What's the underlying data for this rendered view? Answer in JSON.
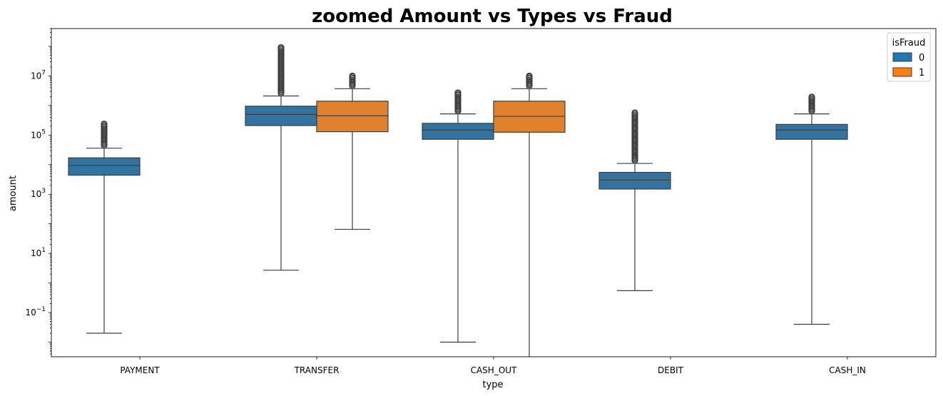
{
  "chart_data": {
    "type": "box",
    "title": "zoomed Amount vs Types vs Fraud",
    "xlabel": "type",
    "ylabel": "amount",
    "yscale": "log",
    "ylim": [
      0.0032,
      400000000
    ],
    "categories": [
      "PAYMENT",
      "TRANSFER",
      "CASH_OUT",
      "DEBIT",
      "CASH_IN"
    ],
    "ytick_labels": [
      {
        "value": 0.1,
        "base": "10",
        "exp": "−1"
      },
      {
        "value": 10,
        "base": "10",
        "exp": "1"
      },
      {
        "value": 1000,
        "base": "10",
        "exp": "3"
      },
      {
        "value": 100000,
        "base": "10",
        "exp": "5"
      },
      {
        "value": 10000000,
        "base": "10",
        "exp": "7"
      }
    ],
    "legend": {
      "title": "isFraud",
      "placement": "top-right",
      "entries": [
        {
          "label": "0",
          "color": "#1f77b4"
        },
        {
          "label": "1",
          "color": "#ff7f0e"
        }
      ]
    },
    "grid": false,
    "series": [
      {
        "name": "0",
        "color": "#3274a1",
        "boxes": [
          {
            "category": "PAYMENT",
            "whisker_low": 0.02,
            "q1": 4400,
            "median": 9500,
            "q3": 17000,
            "whisker_high": 36000,
            "outlier_max": 240000
          },
          {
            "category": "TRANSFER",
            "whisker_low": 2.7,
            "q1": 210000,
            "median": 500000,
            "q3": 950000,
            "whisker_high": 2100000,
            "outlier_max": 92000000
          },
          {
            "category": "CASH_OUT",
            "whisker_low": 0.01,
            "q1": 72000,
            "median": 148000,
            "q3": 250000,
            "whisker_high": 520000,
            "outlier_max": 2700000
          },
          {
            "category": "DEBIT",
            "whisker_low": 0.55,
            "q1": 1500,
            "median": 3000,
            "q3": 5500,
            "whisker_high": 11000,
            "outlier_max": 570000
          },
          {
            "category": "CASH_IN",
            "whisker_low": 0.04,
            "q1": 72000,
            "median": 148000,
            "q3": 230000,
            "whisker_high": 520000,
            "outlier_max": 1950000
          }
        ]
      },
      {
        "name": "1",
        "color": "#e1812c",
        "boxes": [
          {
            "category": "TRANSFER",
            "whisker_low": 65,
            "q1": 130000,
            "median": 450000,
            "q3": 1400000,
            "whisker_high": 3700000,
            "outlier_max": 10000000
          },
          {
            "category": "CASH_OUT",
            "whisker_low": 0.003,
            "q1": 125000,
            "median": 430000,
            "q3": 1400000,
            "whisker_high": 3700000,
            "outlier_max": 10000000
          }
        ]
      }
    ]
  }
}
